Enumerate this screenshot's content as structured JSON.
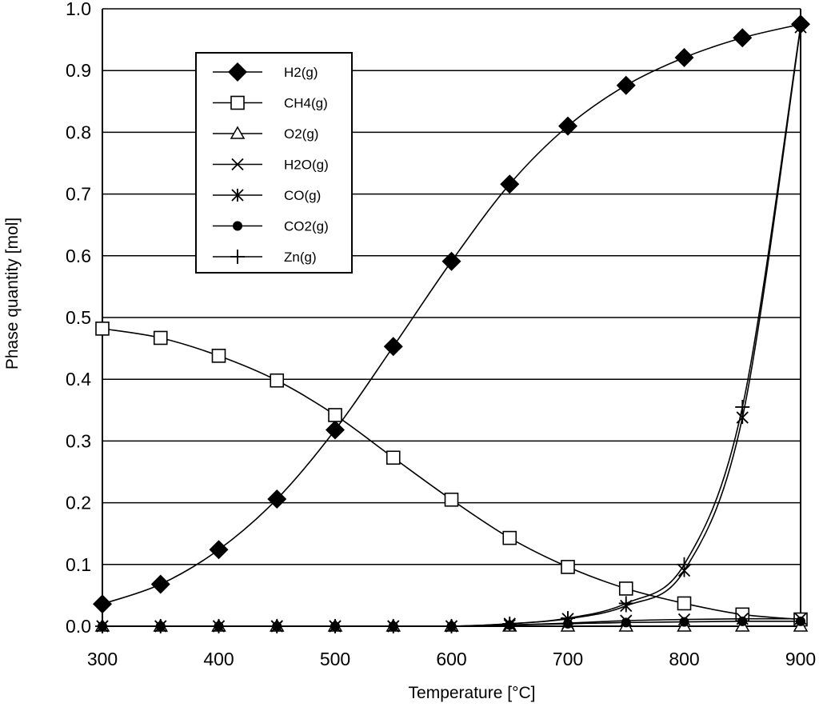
{
  "chart_data": {
    "type": "line",
    "title": "",
    "xlabel": "Temperature  [°C]",
    "ylabel": "Phase quantity  [mol]",
    "xlim": [
      300,
      900
    ],
    "ylim": [
      0.0,
      1.0
    ],
    "x_ticks": [
      300,
      400,
      500,
      600,
      700,
      800,
      900
    ],
    "x_tick_labels": [
      "300",
      "400",
      "500",
      "600",
      "700",
      "800",
      "900"
    ],
    "y_ticks": [
      0.0,
      0.1,
      0.2,
      0.3,
      0.4,
      0.5,
      0.6,
      0.7,
      0.8,
      0.9,
      1.0
    ],
    "y_tick_labels": [
      "0.0",
      "0.1",
      "0.2",
      "0.3",
      "0.4",
      "0.5",
      "0.6",
      "0.7",
      "0.8",
      "0.9",
      "1.0"
    ],
    "grid": "horizontal",
    "legend_position": "top-left",
    "x": [
      300,
      350,
      400,
      450,
      500,
      550,
      600,
      650,
      700,
      750,
      800,
      850,
      900
    ],
    "series": [
      {
        "name": "H2(g)",
        "marker": "filled-diamond",
        "values": [
          0.036,
          0.068,
          0.124,
          0.206,
          0.318,
          0.453,
          0.591,
          0.716,
          0.81,
          0.876,
          0.921,
          0.953,
          0.975
        ]
      },
      {
        "name": "CH4(g)",
        "marker": "open-square",
        "values": [
          0.482,
          0.467,
          0.438,
          0.398,
          0.342,
          0.273,
          0.205,
          0.143,
          0.096,
          0.061,
          0.037,
          0.019,
          0.011
        ]
      },
      {
        "name": "O2(g)",
        "marker": "open-triangle",
        "values": [
          0,
          0,
          0,
          0,
          0,
          0,
          0,
          0,
          0,
          0,
          0,
          0,
          0
        ]
      },
      {
        "name": "H2O(g)",
        "marker": "x",
        "values": [
          0.0,
          0.0,
          0.0,
          0.0,
          0.0,
          0.0,
          0.0,
          0.002,
          0.005,
          0.009,
          0.011,
          0.012,
          0.012
        ]
      },
      {
        "name": "CO(g)",
        "marker": "asterisk",
        "values": [
          0.0,
          0.0,
          0.0,
          0.0,
          0.0,
          0.0,
          0.0,
          0.004,
          0.012,
          0.033,
          0.09,
          0.338,
          0.97
        ]
      },
      {
        "name": "CO2(g)",
        "marker": "filled-circle",
        "values": [
          0.0,
          0.0,
          0.0,
          0.0,
          0.0,
          0.0,
          0.0,
          0.002,
          0.004,
          0.006,
          0.007,
          0.008,
          0.008
        ]
      },
      {
        "name": "Zn(g)",
        "marker": "plus",
        "values": [
          0.0,
          0.0,
          0.0,
          0.0,
          0.0,
          0.0,
          0.0,
          0.004,
          0.013,
          0.037,
          0.1,
          0.355,
          0.972
        ]
      }
    ]
  },
  "colors": {
    "line": "#000000",
    "grid": "#000000",
    "background": "#ffffff"
  }
}
